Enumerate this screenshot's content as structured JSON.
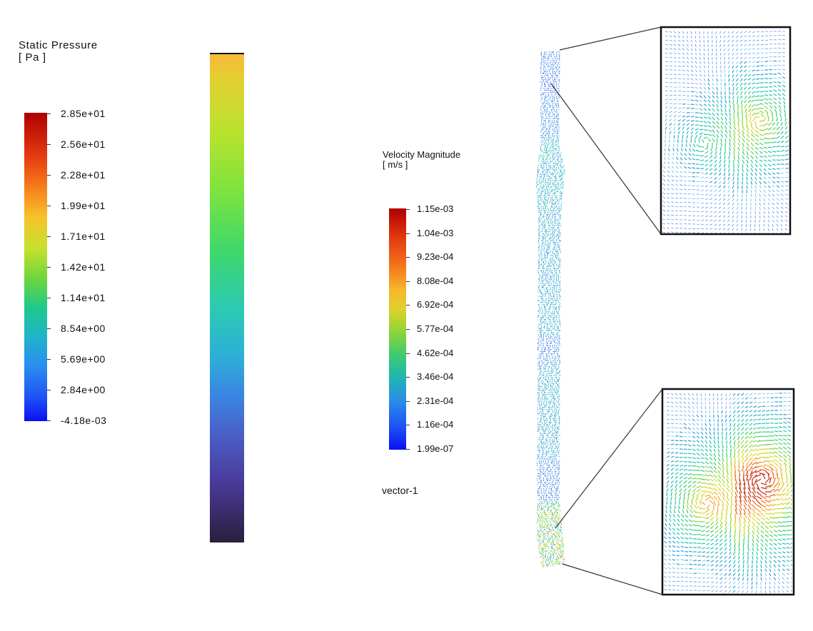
{
  "pressure_legend": {
    "title": "Static Pressure",
    "unit": "[ Pa ]",
    "labels": [
      "2.85e+01",
      "2.56e+01",
      "2.28e+01",
      "1.99e+01",
      "1.71e+01",
      "1.42e+01",
      "1.14e+01",
      "8.54e+00",
      "5.69e+00",
      "2.84e+00",
      "-4.18e-03"
    ]
  },
  "velocity_legend": {
    "title": "Velocity Magnitude",
    "unit": "[ m/s ]",
    "labels": [
      "1.15e-03",
      "1.04e-03",
      "9.23e-04",
      "8.08e-04",
      "6.92e-04",
      "5.77e-04",
      "4.62e-04",
      "3.46e-04",
      "2.31e-04",
      "1.16e-04",
      "1.99e-07"
    ]
  },
  "vector_name": "vector-1",
  "colors": {
    "jet_top": "#b40000",
    "jet_bottom": "#0000ff",
    "viridis_top": "#fde725",
    "viridis_bottom": "#2c1e3a"
  }
}
